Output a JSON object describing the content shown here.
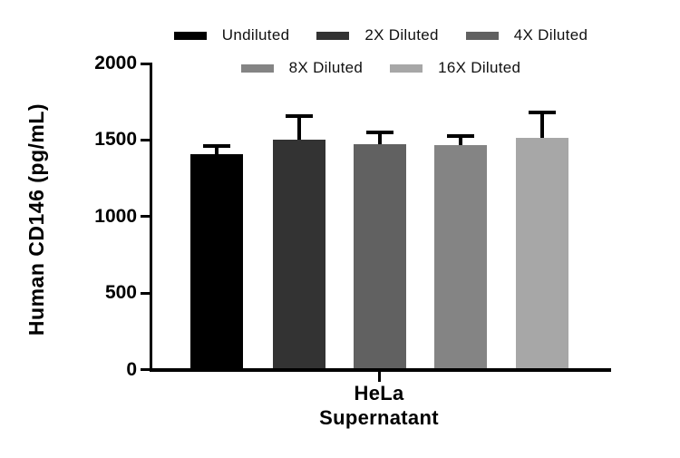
{
  "figure": {
    "background": "#ffffff",
    "text_color": "#000000"
  },
  "chart_data": {
    "type": "bar",
    "title": "",
    "ylabel": "Human CD146 (pg/mL)",
    "xlabel": "HeLa Supernatant",
    "xlabel_lines": [
      "HeLa",
      "Supernatant"
    ],
    "ylim": [
      0,
      2000
    ],
    "yticks": [
      0,
      500,
      1000,
      1500,
      2000
    ],
    "ytick_labels": [
      "0",
      "500",
      "1000",
      "1500",
      "2000"
    ],
    "grid": false,
    "legend_position": "top",
    "categories": [
      "HeLa Supernatant"
    ],
    "series": [
      {
        "name": "Undiluted",
        "value": 1410,
        "error_top": 1460,
        "color": "#000000"
      },
      {
        "name": "2X Diluted",
        "value": 1505,
        "error_top": 1655,
        "color": "#333333"
      },
      {
        "name": "4X Diluted",
        "value": 1470,
        "error_top": 1550,
        "color": "#616161"
      },
      {
        "name": "8X Diluted",
        "value": 1467,
        "error_top": 1525,
        "color": "#848484"
      },
      {
        "name": "16X Diluted",
        "value": 1515,
        "error_top": 1680,
        "color": "#a7a7a7"
      }
    ],
    "legend_rows": [
      [
        0,
        1,
        2
      ],
      [
        3,
        4
      ]
    ]
  }
}
